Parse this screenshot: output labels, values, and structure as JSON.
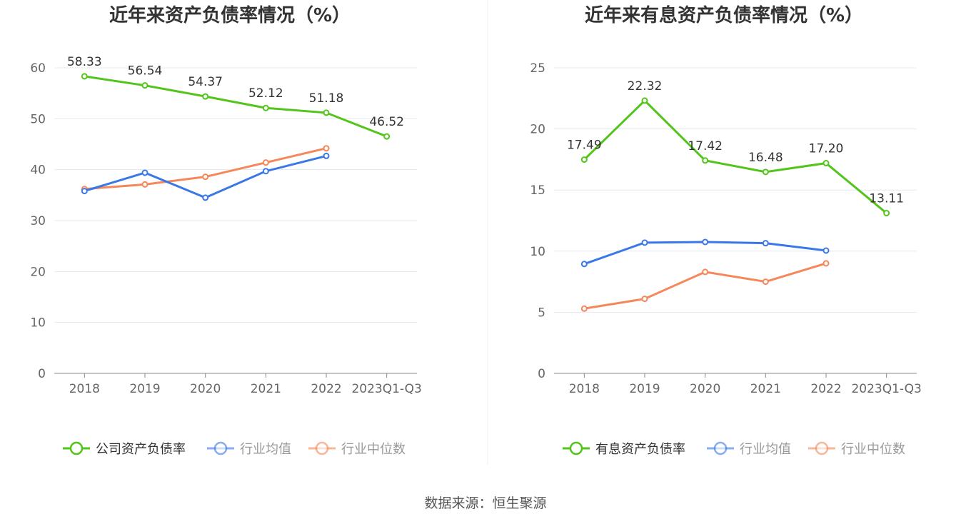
{
  "source": "数据来源：恒生聚源",
  "colors": {
    "company": "#52c41a",
    "avg": "#3b78e7",
    "median": "#f5875a",
    "grid": "#e3e8f3",
    "axis": "#666",
    "text": "#333"
  },
  "chart_data": [
    {
      "type": "line",
      "title": "近年来资产负债率情况（%）",
      "categories": [
        "2018",
        "2019",
        "2020",
        "2021",
        "2022",
        "2023Q1-Q3"
      ],
      "ylim": [
        0,
        60
      ],
      "yticks": [
        0,
        10,
        20,
        30,
        40,
        50,
        60
      ],
      "legend_position": "bottom",
      "series": [
        {
          "name": "公司资产负债率",
          "color_key": "company",
          "values": [
            58.33,
            56.54,
            54.37,
            52.12,
            51.18,
            46.52
          ],
          "labels": [
            "58.33",
            "56.54",
            "54.37",
            "52.12",
            "51.18",
            "46.52"
          ]
        },
        {
          "name": "行业均值",
          "color_key": "avg",
          "values": [
            35.8,
            39.4,
            34.5,
            39.7,
            42.7,
            null
          ]
        },
        {
          "name": "行业中位数",
          "color_key": "median",
          "values": [
            36.2,
            37.1,
            38.6,
            41.4,
            44.2,
            null
          ]
        }
      ]
    },
    {
      "type": "line",
      "title": "近年来有息资产负债率情况（%）",
      "categories": [
        "2018",
        "2019",
        "2020",
        "2021",
        "2022",
        "2023Q1-Q3"
      ],
      "ylim": [
        0,
        25
      ],
      "yticks": [
        0,
        5,
        10,
        15,
        20,
        25
      ],
      "legend_position": "bottom",
      "series": [
        {
          "name": "有息资产负债率",
          "color_key": "company",
          "values": [
            17.49,
            22.32,
            17.42,
            16.48,
            17.2,
            13.11
          ],
          "labels": [
            "17.49",
            "22.32",
            "17.42",
            "16.48",
            "17.20",
            "13.11"
          ]
        },
        {
          "name": "行业均值",
          "color_key": "avg",
          "values": [
            8.95,
            10.7,
            10.75,
            10.65,
            10.05,
            null
          ]
        },
        {
          "name": "行业中位数",
          "color_key": "median",
          "values": [
            5.3,
            6.1,
            8.3,
            7.5,
            9.0,
            null
          ]
        }
      ]
    }
  ]
}
